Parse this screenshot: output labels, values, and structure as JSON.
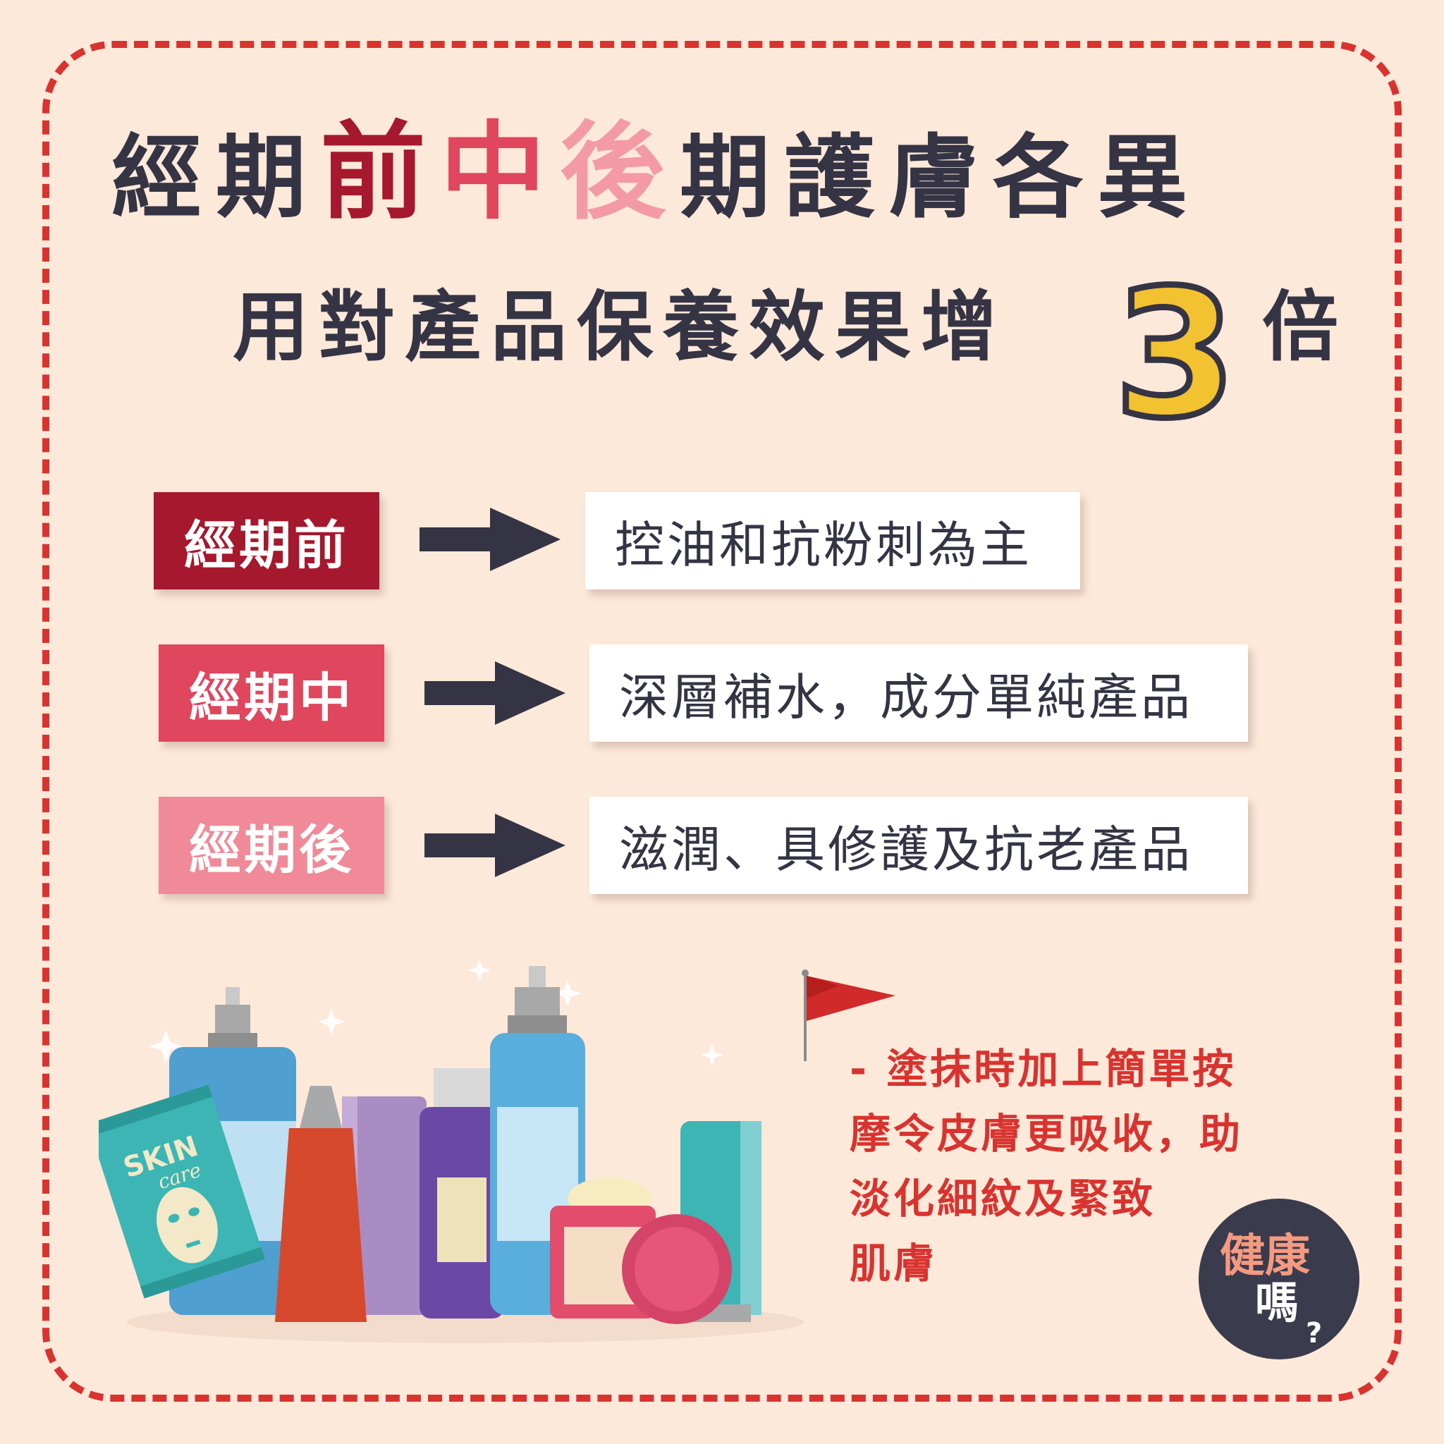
{
  "title": {
    "line1_pre": "經期",
    "line1_hl1": "前",
    "line1_hl2": "中",
    "line1_hl3": "後",
    "line1_post": "期護膚各異",
    "line2_pre": "用對產品保養效果增",
    "line2_number": "3",
    "line2_post": "倍"
  },
  "phases": [
    {
      "label": "經期前",
      "desc": "控油和抗粉刺為主",
      "color": "#a5182d"
    },
    {
      "label": "經期中",
      "desc": "深層補水，成分單純產品",
      "color": "#e0465e"
    },
    {
      "label": "經期後",
      "desc": "滋潤、具修護及抗老產品",
      "color": "#f08a98"
    }
  ],
  "tip": {
    "line1": "- 塗抹時加上簡單按",
    "line2": "摩令皮膚更吸收，助",
    "line3": "淡化細紋及緊致",
    "line4": "肌膚"
  },
  "packet_text": {
    "line1": "SKIN",
    "line2": "care"
  },
  "logo": {
    "line1": "健康",
    "line2": "嗎",
    "mark": "?"
  },
  "colors": {
    "background": "#fde9da",
    "frame": "#d9332f",
    "text": "#353444",
    "accent_yellow": "#f2c230"
  }
}
